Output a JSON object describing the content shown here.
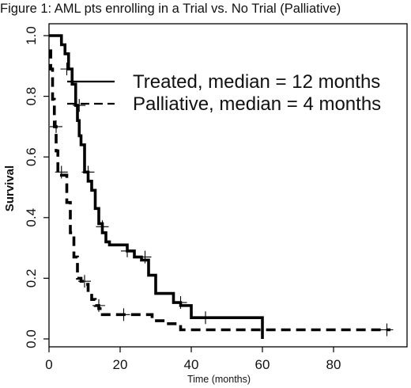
{
  "figure_title": "Figure 1:  AML pts enrolling in a Trial vs. No Trial (Palliative)",
  "chart_data": {
    "type": "line",
    "subtype": "kaplan-meier step curves",
    "title": "",
    "xlabel": "Time (months)",
    "ylabel": "Survival",
    "xlim": [
      0,
      100
    ],
    "ylim": [
      0.0,
      1.05
    ],
    "x_ticks": [
      0,
      20,
      40,
      60,
      80
    ],
    "y_ticks": [
      0.0,
      0.2,
      0.4,
      0.6,
      0.8,
      1.0
    ],
    "x_tick_labels": [
      "0",
      "20",
      "40",
      "60",
      "80"
    ],
    "y_tick_labels": [
      "0.0",
      "0.2",
      "0.4",
      "0.6",
      "0.8",
      "1.0"
    ],
    "grid": false,
    "legend_position": "top-right",
    "series": [
      {
        "name": "Treated, median = 12 months",
        "line_style": "solid",
        "color": "#000000",
        "steps": [
          [
            0,
            1.0
          ],
          [
            3,
            1.0
          ],
          [
            3.5,
            0.97
          ],
          [
            4.5,
            0.94
          ],
          [
            5.5,
            0.89
          ],
          [
            6.5,
            0.84
          ],
          [
            7.5,
            0.77
          ],
          [
            8,
            0.72
          ],
          [
            8.5,
            0.67
          ],
          [
            9,
            0.64
          ],
          [
            10,
            0.55
          ],
          [
            11,
            0.52
          ],
          [
            12,
            0.49
          ],
          [
            13,
            0.43
          ],
          [
            14,
            0.38
          ],
          [
            15,
            0.35
          ],
          [
            16,
            0.32
          ],
          [
            17,
            0.31
          ],
          [
            22,
            0.29
          ],
          [
            24,
            0.27
          ],
          [
            26,
            0.26
          ],
          [
            28,
            0.21
          ],
          [
            30,
            0.15
          ],
          [
            35,
            0.12
          ],
          [
            37,
            0.11
          ],
          [
            40,
            0.07
          ],
          [
            60,
            0.07
          ],
          [
            60,
            0.0
          ]
        ],
        "censor_marks": [
          [
            5,
            0.89
          ],
          [
            8.5,
            0.77
          ],
          [
            11,
            0.55
          ],
          [
            15,
            0.37
          ],
          [
            22,
            0.29
          ],
          [
            27,
            0.27
          ],
          [
            37,
            0.12
          ],
          [
            44,
            0.07
          ]
        ]
      },
      {
        "name": "Palliative, median = 4 months",
        "line_style": "dashed",
        "color": "#000000",
        "steps": [
          [
            0,
            0.95
          ],
          [
            0.5,
            0.89
          ],
          [
            1,
            0.79
          ],
          [
            1.5,
            0.7
          ],
          [
            2,
            0.62
          ],
          [
            2.5,
            0.55
          ],
          [
            3.5,
            0.54
          ],
          [
            5,
            0.45
          ],
          [
            6,
            0.35
          ],
          [
            7,
            0.27
          ],
          [
            8,
            0.2
          ],
          [
            9,
            0.19
          ],
          [
            10,
            0.18
          ],
          [
            11,
            0.15
          ],
          [
            12,
            0.13
          ],
          [
            13,
            0.11
          ],
          [
            14,
            0.1
          ],
          [
            15,
            0.08
          ],
          [
            29,
            0.06
          ],
          [
            33,
            0.05
          ],
          [
            37,
            0.05
          ],
          [
            37,
            0.03
          ],
          [
            96,
            0.03
          ]
        ],
        "censor_marks": [
          [
            2,
            0.7
          ],
          [
            3.5,
            0.55
          ],
          [
            10,
            0.19
          ],
          [
            14,
            0.11
          ],
          [
            21,
            0.08
          ],
          [
            95,
            0.03
          ]
        ]
      }
    ]
  }
}
